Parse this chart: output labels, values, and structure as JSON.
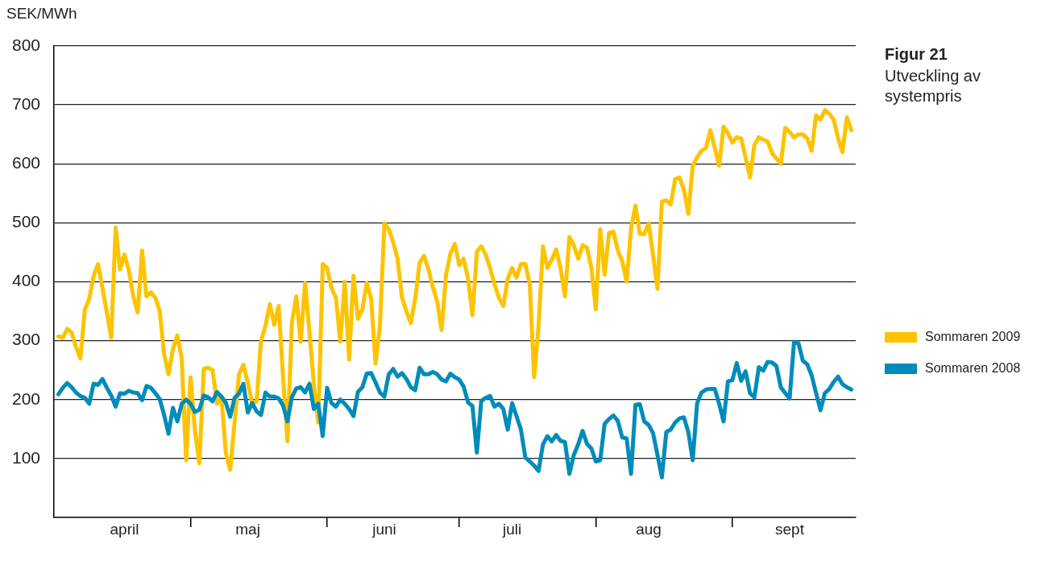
{
  "chart_data": {
    "type": "line",
    "title": "Figur 21",
    "subtitle": "Utveckling av systempris",
    "ylabel": "SEK/MWh",
    "x": [
      "--04-01",
      "--04-02",
      "--04-03",
      "--04-04",
      "--04-05",
      "--04-06",
      "--04-07",
      "--04-08",
      "--04-09",
      "--04-10",
      "--04-11",
      "--04-12",
      "--04-13",
      "--04-14",
      "--04-15",
      "--04-16",
      "--04-17",
      "--04-18",
      "--04-19",
      "--04-20",
      "--04-21",
      "--04-22",
      "--04-23",
      "--04-24",
      "--04-25",
      "--04-26",
      "--04-27",
      "--04-28",
      "--04-29",
      "--04-30",
      "--05-01",
      "--05-02",
      "--05-03",
      "--05-04",
      "--05-05",
      "--05-06",
      "--05-07",
      "--05-08",
      "--05-09",
      "--05-10",
      "--05-11",
      "--05-12",
      "--05-13",
      "--05-14",
      "--05-15",
      "--05-16",
      "--05-17",
      "--05-18",
      "--05-19",
      "--05-20",
      "--05-21",
      "--05-22",
      "--05-23",
      "--05-24",
      "--05-25",
      "--05-26",
      "--05-27",
      "--05-28",
      "--05-29",
      "--05-30",
      "--05-31",
      "--06-01",
      "--06-02",
      "--06-03",
      "--06-04",
      "--06-05",
      "--06-06",
      "--06-07",
      "--06-08",
      "--06-09",
      "--06-10",
      "--06-11",
      "--06-12",
      "--06-13",
      "--06-14",
      "--06-15",
      "--06-16",
      "--06-17",
      "--06-18",
      "--06-19",
      "--06-20",
      "--06-21",
      "--06-22",
      "--06-23",
      "--06-24",
      "--06-25",
      "--06-26",
      "--06-27",
      "--06-28",
      "--06-29",
      "--06-30",
      "--07-01",
      "--07-02",
      "--07-03",
      "--07-04",
      "--07-05",
      "--07-06",
      "--07-07",
      "--07-08",
      "--07-09",
      "--07-10",
      "--07-11",
      "--07-12",
      "--07-13",
      "--07-14",
      "--07-15",
      "--07-16",
      "--07-17",
      "--07-18",
      "--07-19",
      "--07-20",
      "--07-21",
      "--07-22",
      "--07-23",
      "--07-24",
      "--07-25",
      "--07-26",
      "--07-27",
      "--07-28",
      "--07-29",
      "--07-30",
      "--07-31",
      "--08-01",
      "--08-02",
      "--08-03",
      "--08-04",
      "--08-05",
      "--08-06",
      "--08-07",
      "--08-08",
      "--08-09",
      "--08-10",
      "--08-11",
      "--08-12",
      "--08-13",
      "--08-14",
      "--08-15",
      "--08-16",
      "--08-17",
      "--08-18",
      "--08-19",
      "--08-20",
      "--08-21",
      "--08-22",
      "--08-23",
      "--08-24",
      "--08-25",
      "--08-26",
      "--08-27",
      "--08-28",
      "--08-29",
      "--08-30",
      "--08-31",
      "--09-01",
      "--09-02",
      "--09-03",
      "--09-04",
      "--09-05",
      "--09-06",
      "--09-07",
      "--09-08",
      "--09-09",
      "--09-10",
      "--09-11",
      "--09-12",
      "--09-13",
      "--09-14",
      "--09-15",
      "--09-16",
      "--09-17",
      "--09-18",
      "--09-19",
      "--09-20",
      "--09-21",
      "--09-22",
      "--09-23",
      "--09-24",
      "--09-25",
      "--09-26",
      "--09-27",
      "--09-28"
    ],
    "series": [
      {
        "name": "Sommaren 2009",
        "color": "#fdc300",
        "values": [
          307,
          305,
          320,
          314,
          289,
          270,
          353,
          371,
          410,
          430,
          389,
          348,
          305,
          492,
          421,
          446,
          419,
          375,
          348,
          453,
          375,
          382,
          373,
          350,
          277,
          243,
          286,
          309,
          270,
          97,
          238,
          147,
          92,
          252,
          254,
          250,
          193,
          206,
          110,
          81,
          161,
          243,
          259,
          229,
          193,
          197,
          300,
          325,
          362,
          327,
          359,
          238,
          129,
          330,
          375,
          298,
          398,
          314,
          225,
          161,
          430,
          423,
          389,
          373,
          298,
          400,
          268,
          410,
          337,
          353,
          398,
          371,
          261,
          325,
          499,
          489,
          467,
          439,
          373,
          350,
          330,
          371,
          432,
          444,
          421,
          391,
          366,
          318,
          412,
          448,
          464,
          428,
          439,
          405,
          343,
          451,
          460,
          446,
          423,
          396,
          373,
          359,
          405,
          423,
          407,
          430,
          430,
          396,
          238,
          325,
          460,
          423,
          437,
          455,
          423,
          375,
          476,
          462,
          439,
          462,
          458,
          423,
          353,
          489,
          412,
          483,
          485,
          453,
          435,
          400,
          490,
          529,
          481,
          481,
          499,
          445,
          388,
          536,
          538,
          531,
          574,
          577,
          556,
          515,
          597,
          611,
          622,
          627,
          657,
          627,
          597,
          663,
          652,
          636,
          645,
          643,
          611,
          577,
          632,
          645,
          641,
          638,
          618,
          609,
          600,
          661,
          654,
          645,
          650,
          650,
          643,
          622,
          682,
          675,
          691,
          685,
          675,
          643,
          620,
          679,
          657
        ]
      },
      {
        "name": "Sommaren 2008",
        "color": "#008cba",
        "values": [
          209,
          220,
          228,
          221,
          212,
          206,
          203,
          193,
          227,
          225,
          235,
          220,
          207,
          188,
          211,
          210,
          215,
          212,
          211,
          199,
          223,
          220,
          211,
          201,
          174,
          142,
          186,
          163,
          193,
          200,
          193,
          179,
          183,
          207,
          204,
          197,
          213,
          205,
          195,
          171,
          203,
          210,
          227,
          178,
          194,
          180,
          174,
          212,
          205,
          205,
          202,
          190,
          163,
          204,
          219,
          221,
          212,
          227,
          184,
          193,
          138,
          220,
          194,
          188,
          200,
          193,
          184,
          172,
          213,
          221,
          244,
          245,
          229,
          212,
          205,
          243,
          252,
          239,
          245,
          235,
          221,
          216,
          254,
          243,
          243,
          247,
          243,
          234,
          231,
          244,
          238,
          234,
          222,
          195,
          189,
          110,
          198,
          203,
          206,
          188,
          193,
          184,
          149,
          194,
          172,
          149,
          102,
          95,
          88,
          79,
          124,
          138,
          129,
          140,
          130,
          128,
          74,
          106,
          124,
          147,
          125,
          117,
          95,
          97,
          159,
          167,
          173,
          164,
          136,
          134,
          74,
          191,
          192,
          163,
          157,
          143,
          106,
          68,
          145,
          149,
          161,
          168,
          170,
          145,
          97,
          194,
          212,
          217,
          218,
          218,
          193,
          163,
          231,
          233,
          262,
          232,
          248,
          211,
          204,
          255,
          249,
          264,
          263,
          257,
          221,
          211,
          202,
          298,
          296,
          266,
          260,
          241,
          211,
          182,
          211,
          218,
          230,
          239,
          226,
          221,
          217
        ]
      }
    ],
    "xlim": [
      "--03-31",
      "--09-29"
    ],
    "xticks": [
      {
        "value": "--04-16",
        "label": "april"
      },
      {
        "value": "--05-01",
        "label": null
      },
      {
        "value": "--05-14",
        "label": "maj"
      },
      {
        "value": "--06-01",
        "label": null
      },
      {
        "value": "--06-14",
        "label": "juni"
      },
      {
        "value": "--07-01",
        "label": null
      },
      {
        "value": "--07-13",
        "label": "juli"
      },
      {
        "value": "--08-01",
        "label": null
      },
      {
        "value": "--08-13",
        "label": "aug"
      },
      {
        "value": "--09-01",
        "label": null
      },
      {
        "value": "--09-14",
        "label": "sept"
      }
    ],
    "ylim": [
      0,
      800
    ],
    "yticks": [
      100,
      200,
      300,
      400,
      500,
      600,
      700,
      800
    ],
    "grid": "y",
    "legend": "right",
    "marker": "none",
    "line_style": "solid"
  }
}
